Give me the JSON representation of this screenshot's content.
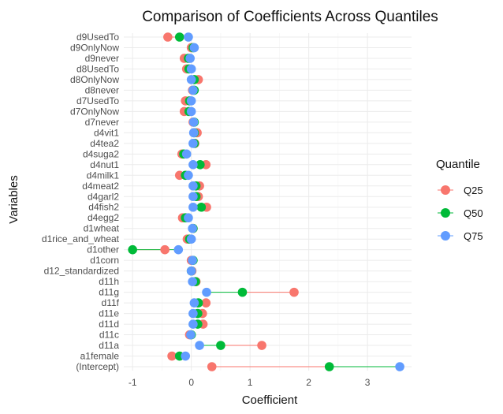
{
  "chart_data": {
    "type": "dot-range",
    "title": "Comparison of Coefficients Across Quantiles",
    "xlabel": "Coefficient",
    "ylabel": "Variables",
    "xlim": [
      -1.15,
      3.75
    ],
    "xticks": [
      -1,
      0,
      1,
      2,
      3
    ],
    "grid": true,
    "legend": {
      "title": "Quantile",
      "placement": "right"
    },
    "categories": [
      "d9UsedTo",
      "d9OnlyNow",
      "d9never",
      "d8UsedTo",
      "d8OnlyNow",
      "d8never",
      "d7UsedTo",
      "d7OnlyNow",
      "d7never",
      "d4vit1",
      "d4tea2",
      "d4suga2",
      "d4nut1",
      "d4milk1",
      "d4meat2",
      "d4garl2",
      "d4fish2",
      "d4egg2",
      "d1wheat",
      "d1rice_and_wheat",
      "d1other",
      "d1corn",
      "d12_standardized",
      "d11h",
      "d11g",
      "d11f",
      "d11e",
      "d11d",
      "d11c",
      "d11a",
      "a1female",
      "(Intercept)"
    ],
    "series": [
      {
        "name": "Q25",
        "color": "#F8766D",
        "values": [
          -0.4,
          0.0,
          -0.12,
          -0.08,
          0.12,
          0.02,
          -0.1,
          -0.12,
          0.03,
          0.1,
          0.06,
          -0.16,
          0.25,
          -0.2,
          0.14,
          0.12,
          0.26,
          -0.15,
          0.03,
          -0.07,
          -0.45,
          0.0,
          0.01,
          0.08,
          1.75,
          0.25,
          0.19,
          0.2,
          -0.03,
          1.2,
          -0.33,
          0.35
        ]
      },
      {
        "name": "Q50",
        "color": "#00BA38",
        "values": [
          -0.2,
          0.03,
          -0.05,
          -0.04,
          0.05,
          0.05,
          -0.03,
          -0.04,
          0.05,
          0.05,
          0.05,
          -0.13,
          0.15,
          -0.1,
          0.08,
          0.08,
          0.17,
          -0.1,
          0.03,
          -0.03,
          -1.0,
          0.03,
          0.0,
          0.07,
          0.87,
          0.12,
          0.11,
          0.11,
          0.0,
          0.5,
          -0.2,
          2.35
        ]
      },
      {
        "name": "Q75",
        "color": "#619CFF",
        "values": [
          -0.05,
          0.05,
          -0.02,
          0.0,
          0.0,
          0.03,
          0.0,
          0.0,
          0.04,
          0.04,
          0.03,
          -0.08,
          0.03,
          -0.05,
          0.03,
          0.03,
          0.03,
          -0.05,
          0.02,
          0.0,
          -0.22,
          0.02,
          0.0,
          0.02,
          0.26,
          0.05,
          0.03,
          0.03,
          -0.01,
          0.14,
          -0.1,
          3.55
        ]
      }
    ]
  }
}
